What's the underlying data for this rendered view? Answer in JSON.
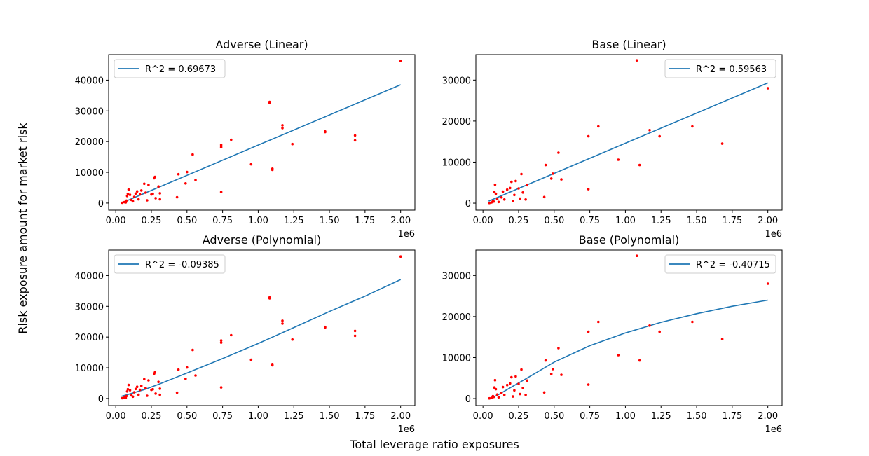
{
  "figure": {
    "supxlabel": "Total leverage ratio exposures",
    "supylabel": "Risk exposure amount for market risk"
  },
  "chart_data": [
    {
      "type": "scatter",
      "title": "Adverse (Linear)",
      "xlim": [
        -0.05,
        2.1
      ],
      "ylim": [
        -2300,
        48300
      ],
      "x_scale_label": "1e6",
      "xticks": [
        0,
        0.25,
        0.5,
        0.75,
        1.0,
        1.25,
        1.5,
        1.75,
        2.0
      ],
      "xtick_labels": [
        "0.00",
        "0.25",
        "0.50",
        "0.75",
        "1.00",
        "1.25",
        "1.50",
        "1.75",
        "2.00"
      ],
      "yticks": [
        0,
        10000,
        20000,
        30000,
        40000
      ],
      "ytick_labels": [
        "0",
        "10000",
        "20000",
        "30000",
        "40000"
      ],
      "legend": {
        "label": "R^2 = 0.69673",
        "position": "upper-left"
      },
      "points": [
        [
          0.045,
          100
        ],
        [
          0.06,
          300
        ],
        [
          0.07,
          200
        ],
        [
          0.075,
          800
        ],
        [
          0.08,
          2300
        ],
        [
          0.085,
          3000
        ],
        [
          0.09,
          4400
        ],
        [
          0.1,
          2700
        ],
        [
          0.11,
          1000
        ],
        [
          0.12,
          600
        ],
        [
          0.13,
          2000
        ],
        [
          0.14,
          3100
        ],
        [
          0.15,
          3800
        ],
        [
          0.16,
          1200
        ],
        [
          0.17,
          2800
        ],
        [
          0.18,
          4100
        ],
        [
          0.2,
          6300
        ],
        [
          0.21,
          3400
        ],
        [
          0.22,
          900
        ],
        [
          0.23,
          5900
        ],
        [
          0.25,
          2800
        ],
        [
          0.26,
          3000
        ],
        [
          0.27,
          8100
        ],
        [
          0.275,
          8500
        ],
        [
          0.28,
          1600
        ],
        [
          0.3,
          5400
        ],
        [
          0.31,
          1200
        ],
        [
          0.31,
          3200
        ],
        [
          0.43,
          1900
        ],
        [
          0.44,
          9400
        ],
        [
          0.49,
          6400
        ],
        [
          0.5,
          10100
        ],
        [
          0.54,
          15800
        ],
        [
          0.56,
          7500
        ],
        [
          0.74,
          3600
        ],
        [
          0.74,
          18900
        ],
        [
          0.74,
          18200
        ],
        [
          0.81,
          20600
        ],
        [
          0.95,
          12600
        ],
        [
          1.08,
          32900
        ],
        [
          1.08,
          32600
        ],
        [
          1.1,
          10800
        ],
        [
          1.1,
          11200
        ],
        [
          1.17,
          25300
        ],
        [
          1.17,
          24400
        ],
        [
          1.24,
          19200
        ],
        [
          1.47,
          23300
        ],
        [
          1.47,
          23100
        ],
        [
          1.68,
          22000
        ],
        [
          1.68,
          20400
        ],
        [
          2.0,
          46200
        ]
      ],
      "line": [
        [
          0.04,
          0
        ],
        [
          2.0,
          38500
        ]
      ]
    },
    {
      "type": "scatter",
      "title": "Base (Linear)",
      "xlim": [
        -0.05,
        2.1
      ],
      "ylim": [
        -1700,
        36200
      ],
      "x_scale_label": "1e6",
      "xticks": [
        0,
        0.25,
        0.5,
        0.75,
        1.0,
        1.25,
        1.5,
        1.75,
        2.0
      ],
      "xtick_labels": [
        "0.00",
        "0.25",
        "0.50",
        "0.75",
        "1.00",
        "1.25",
        "1.50",
        "1.75",
        "2.00"
      ],
      "yticks": [
        0,
        10000,
        20000,
        30000
      ],
      "ytick_labels": [
        "0",
        "10000",
        "20000",
        "30000"
      ],
      "legend": {
        "label": "R^2 = 0.59563",
        "position": "upper-right"
      },
      "points": [
        [
          0.045,
          50
        ],
        [
          0.06,
          200
        ],
        [
          0.07,
          600
        ],
        [
          0.075,
          400
        ],
        [
          0.08,
          2700
        ],
        [
          0.085,
          4500
        ],
        [
          0.09,
          2300
        ],
        [
          0.1,
          1000
        ],
        [
          0.11,
          300
        ],
        [
          0.13,
          1400
        ],
        [
          0.14,
          2800
        ],
        [
          0.15,
          900
        ],
        [
          0.17,
          3300
        ],
        [
          0.19,
          3700
        ],
        [
          0.2,
          5200
        ],
        [
          0.21,
          500
        ],
        [
          0.22,
          2000
        ],
        [
          0.23,
          5400
        ],
        [
          0.25,
          3600
        ],
        [
          0.26,
          1100
        ],
        [
          0.27,
          7100
        ],
        [
          0.28,
          2600
        ],
        [
          0.3,
          900
        ],
        [
          0.31,
          4400
        ],
        [
          0.43,
          1500
        ],
        [
          0.44,
          9300
        ],
        [
          0.48,
          6000
        ],
        [
          0.49,
          7200
        ],
        [
          0.53,
          12300
        ],
        [
          0.55,
          5800
        ],
        [
          0.74,
          3400
        ],
        [
          0.74,
          16300
        ],
        [
          0.81,
          18700
        ],
        [
          0.95,
          10600
        ],
        [
          1.08,
          34800
        ],
        [
          1.1,
          9300
        ],
        [
          1.17,
          17800
        ],
        [
          1.24,
          16300
        ],
        [
          1.47,
          18700
        ],
        [
          1.68,
          14500
        ],
        [
          2.0,
          28000
        ]
      ],
      "line": [
        [
          0.04,
          500
        ],
        [
          2.0,
          29300
        ]
      ]
    },
    {
      "type": "scatter",
      "title": "Adverse (Polynomial)",
      "xlim": [
        -0.05,
        2.1
      ],
      "ylim": [
        -2300,
        48300
      ],
      "x_scale_label": "1e6",
      "xticks": [
        0,
        0.25,
        0.5,
        0.75,
        1.0,
        1.25,
        1.5,
        1.75,
        2.0
      ],
      "xtick_labels": [
        "0.00",
        "0.25",
        "0.50",
        "0.75",
        "1.00",
        "1.25",
        "1.50",
        "1.75",
        "2.00"
      ],
      "yticks": [
        0,
        10000,
        20000,
        30000,
        40000
      ],
      "ytick_labels": [
        "0",
        "10000",
        "20000",
        "30000",
        "40000"
      ],
      "legend": {
        "label": "R^2 = -0.09385",
        "position": "upper-left"
      },
      "points": [
        [
          0.045,
          100
        ],
        [
          0.06,
          300
        ],
        [
          0.07,
          200
        ],
        [
          0.075,
          800
        ],
        [
          0.08,
          2300
        ],
        [
          0.085,
          3000
        ],
        [
          0.09,
          4400
        ],
        [
          0.1,
          2700
        ],
        [
          0.11,
          1000
        ],
        [
          0.12,
          600
        ],
        [
          0.13,
          2000
        ],
        [
          0.14,
          3100
        ],
        [
          0.15,
          3800
        ],
        [
          0.16,
          1200
        ],
        [
          0.17,
          2800
        ],
        [
          0.18,
          4100
        ],
        [
          0.2,
          6300
        ],
        [
          0.21,
          3400
        ],
        [
          0.22,
          900
        ],
        [
          0.23,
          5900
        ],
        [
          0.25,
          2800
        ],
        [
          0.26,
          3000
        ],
        [
          0.27,
          8100
        ],
        [
          0.275,
          8500
        ],
        [
          0.28,
          1600
        ],
        [
          0.3,
          5400
        ],
        [
          0.31,
          1200
        ],
        [
          0.31,
          3200
        ],
        [
          0.43,
          1900
        ],
        [
          0.44,
          9400
        ],
        [
          0.49,
          6400
        ],
        [
          0.5,
          10100
        ],
        [
          0.54,
          15800
        ],
        [
          0.56,
          7500
        ],
        [
          0.74,
          3600
        ],
        [
          0.74,
          18900
        ],
        [
          0.74,
          18200
        ],
        [
          0.81,
          20600
        ],
        [
          0.95,
          12600
        ],
        [
          1.08,
          32900
        ],
        [
          1.08,
          32600
        ],
        [
          1.1,
          10800
        ],
        [
          1.1,
          11200
        ],
        [
          1.17,
          25300
        ],
        [
          1.17,
          24400
        ],
        [
          1.24,
          19200
        ],
        [
          1.47,
          23300
        ],
        [
          1.47,
          23100
        ],
        [
          1.68,
          22000
        ],
        [
          1.68,
          20400
        ],
        [
          2.0,
          46200
        ]
      ],
      "line": [
        [
          0.04,
          700
        ],
        [
          0.1,
          1500
        ],
        [
          0.2,
          2900
        ],
        [
          0.3,
          4600
        ],
        [
          0.5,
          8300
        ],
        [
          0.75,
          13000
        ],
        [
          1.0,
          17900
        ],
        [
          1.25,
          23100
        ],
        [
          1.5,
          28300
        ],
        [
          1.75,
          33300
        ],
        [
          2.0,
          38700
        ]
      ]
    },
    {
      "type": "scatter",
      "title": "Base (Polynomial)",
      "xlim": [
        -0.05,
        2.1
      ],
      "ylim": [
        -1700,
        36200
      ],
      "x_scale_label": "1e6",
      "xticks": [
        0,
        0.25,
        0.5,
        0.75,
        1.0,
        1.25,
        1.5,
        1.75,
        2.0
      ],
      "xtick_labels": [
        "0.00",
        "0.25",
        "0.50",
        "0.75",
        "1.00",
        "1.25",
        "1.50",
        "1.75",
        "2.00"
      ],
      "yticks": [
        0,
        10000,
        20000,
        30000
      ],
      "ytick_labels": [
        "0",
        "10000",
        "20000",
        "30000"
      ],
      "legend": {
        "label": "R^2 = -0.40715",
        "position": "upper-right"
      },
      "points": [
        [
          0.045,
          50
        ],
        [
          0.06,
          200
        ],
        [
          0.07,
          600
        ],
        [
          0.075,
          400
        ],
        [
          0.08,
          2700
        ],
        [
          0.085,
          4500
        ],
        [
          0.09,
          2300
        ],
        [
          0.1,
          1000
        ],
        [
          0.11,
          300
        ],
        [
          0.13,
          1400
        ],
        [
          0.14,
          2800
        ],
        [
          0.15,
          900
        ],
        [
          0.17,
          3300
        ],
        [
          0.19,
          3700
        ],
        [
          0.2,
          5200
        ],
        [
          0.21,
          500
        ],
        [
          0.22,
          2000
        ],
        [
          0.23,
          5400
        ],
        [
          0.25,
          3600
        ],
        [
          0.26,
          1100
        ],
        [
          0.27,
          7100
        ],
        [
          0.28,
          2600
        ],
        [
          0.3,
          900
        ],
        [
          0.31,
          4400
        ],
        [
          0.43,
          1500
        ],
        [
          0.44,
          9300
        ],
        [
          0.48,
          6000
        ],
        [
          0.49,
          7200
        ],
        [
          0.53,
          12300
        ],
        [
          0.55,
          5800
        ],
        [
          0.74,
          3400
        ],
        [
          0.74,
          16300
        ],
        [
          0.81,
          18700
        ],
        [
          0.95,
          10600
        ],
        [
          1.08,
          34800
        ],
        [
          1.1,
          9300
        ],
        [
          1.17,
          17800
        ],
        [
          1.24,
          16300
        ],
        [
          1.47,
          18700
        ],
        [
          1.68,
          14500
        ],
        [
          2.0,
          28000
        ]
      ],
      "line": [
        [
          0.04,
          0
        ],
        [
          0.1,
          800
        ],
        [
          0.2,
          2800
        ],
        [
          0.3,
          4800
        ],
        [
          0.5,
          8900
        ],
        [
          0.75,
          12900
        ],
        [
          1.0,
          16000
        ],
        [
          1.25,
          18600
        ],
        [
          1.5,
          20700
        ],
        [
          1.75,
          22500
        ],
        [
          2.0,
          24000
        ]
      ]
    }
  ],
  "colors": {
    "points": "#ff0000",
    "line": "#1f77b4",
    "axis": "#000000",
    "legend_border": "#cccccc"
  }
}
